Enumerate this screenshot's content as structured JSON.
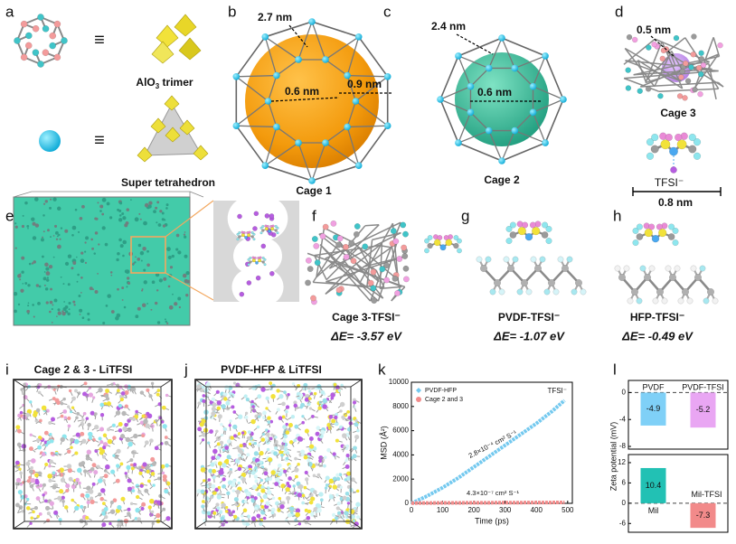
{
  "figure": {
    "panel_labels": [
      "a",
      "b",
      "c",
      "d",
      "e",
      "f",
      "g",
      "h",
      "i",
      "j",
      "k",
      "l"
    ],
    "a": {
      "equiv": "≡",
      "trimer": {
        "main": "AlO",
        "sub": "3",
        "rest": " trimer"
      },
      "super": "Super tetrahedron"
    },
    "b": {
      "d1": "2.7 nm",
      "d2": "0.6 nm",
      "d3": "0.9 nm",
      "caption": "Cage 1"
    },
    "c": {
      "d1": "2.4 nm",
      "d2": "0.6 nm",
      "caption": "Cage 2"
    },
    "d": {
      "d1": "0.5 nm",
      "caption": "Cage 3",
      "ion": "TFSI⁻",
      "length": "0.8 nm"
    },
    "f": {
      "caption": "Cage 3-TFSI⁻",
      "energy": "ΔE= -3.57 eV"
    },
    "g": {
      "caption": "PVDF-TFSI⁻",
      "energy": "ΔE= -1.07 eV"
    },
    "h": {
      "caption": "HFP-TFSI⁻",
      "energy": "ΔE= -0.49 eV"
    },
    "i": {
      "title": "Cage 2 & 3 - LiTFSI"
    },
    "j": {
      "title": "PVDF-HFP & LiTFSI"
    }
  },
  "chart_data": [
    {
      "type": "line",
      "xlabel": "Time (ps)",
      "ylabel": "MSD (Å²)",
      "x": [
        0,
        50,
        100,
        150,
        200,
        250,
        300,
        350,
        400,
        450,
        490
      ],
      "series": [
        {
          "name": "PVDF-HFP",
          "color": "#74c9ef",
          "values": [
            0,
            600,
            1300,
            2100,
            3000,
            3900,
            4800,
            5700,
            6600,
            7600,
            8500
          ]
        },
        {
          "name": "Cage 2 and 3",
          "color": "#f28c8c",
          "values": [
            20,
            30,
            35,
            40,
            45,
            50,
            55,
            60,
            65,
            70,
            75
          ]
        }
      ],
      "xlim": [
        0,
        515
      ],
      "ylim": [
        0,
        10000
      ],
      "xticks": [
        0,
        100,
        200,
        300,
        400,
        500
      ],
      "yticks": [
        0,
        2000,
        4000,
        6000,
        8000,
        10000
      ],
      "annotations": [
        "TFSI⁻",
        "2.8×10⁻⁴ cm² S⁻¹",
        "4.3×10⁻⁷ cm² S⁻¹"
      ],
      "legend": "upper left"
    },
    {
      "type": "bar",
      "ylabel": "Zeta potential (mV)",
      "categories": [
        "PVDF",
        "PVDF-TFSI"
      ],
      "values": [
        -4.9,
        -5.2
      ],
      "colors": [
        "#7fd0f7",
        "#e9a6f3"
      ],
      "ylim": [
        -8.4,
        1.8
      ],
      "yticks": [
        0,
        -4,
        -8
      ]
    },
    {
      "type": "bar",
      "categories": [
        "Mil",
        "Mil-TFSI"
      ],
      "values": [
        10.4,
        -7.3
      ],
      "colors": [
        "#22c1b4",
        "#f28a8a"
      ],
      "ylim": [
        -8.6,
        14.4
      ],
      "yticks": [
        12,
        6,
        0,
        -6
      ]
    }
  ]
}
